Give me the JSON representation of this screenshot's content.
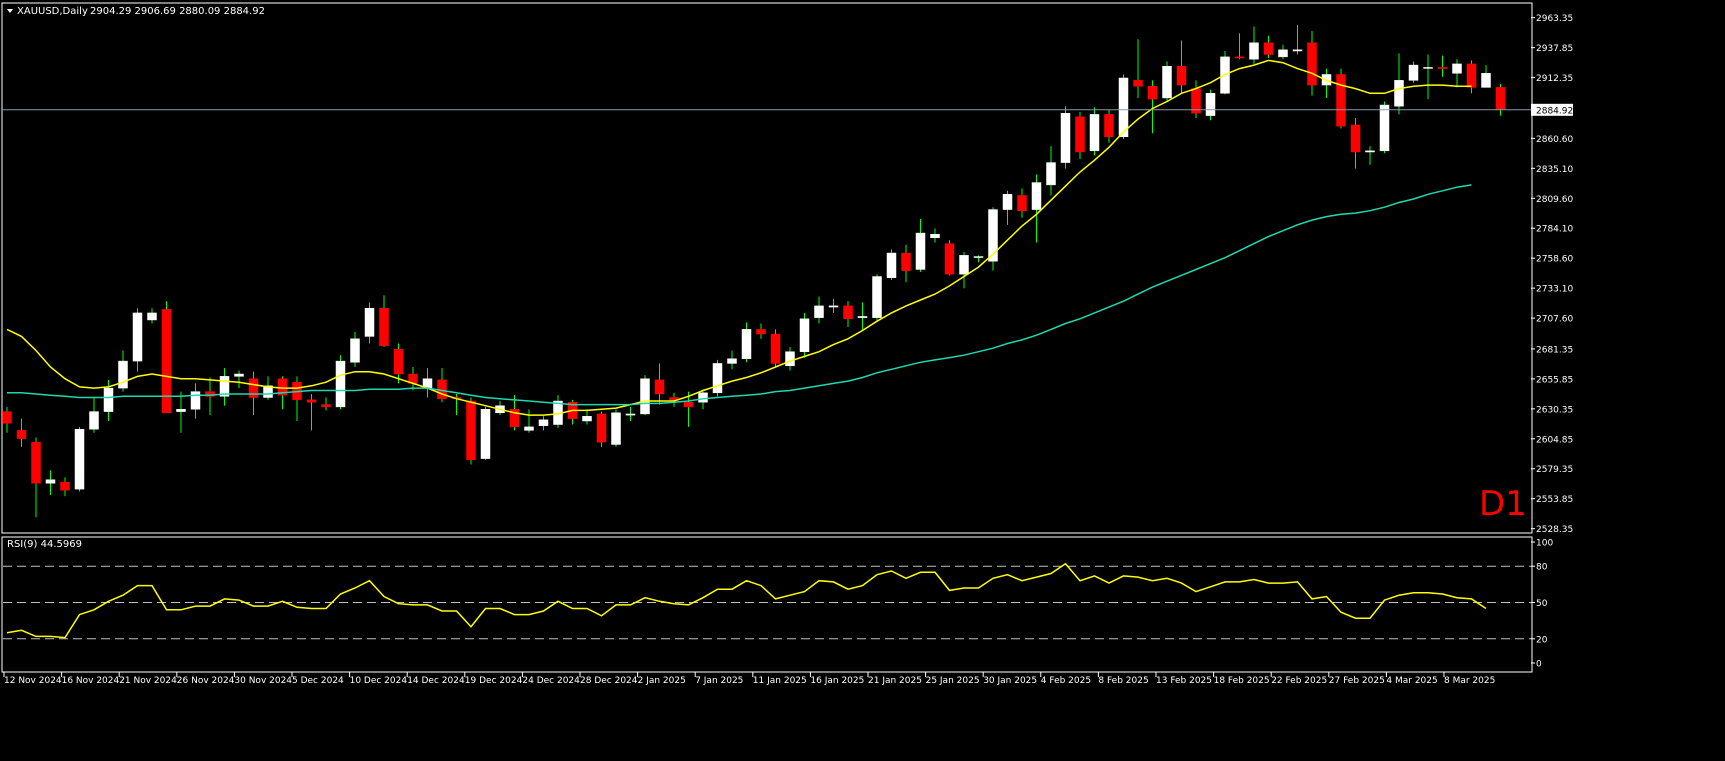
{
  "header": {
    "symbol": "XAUUSD,Daily",
    "ohlc": "2904.29 2906.69 2880.09 2884.92"
  },
  "watermark": "D1",
  "rsi_panel": {
    "label": "RSI(9) 44.5969"
  },
  "colors": {
    "background": "#000000",
    "bull_candle": "#ffffff",
    "bear_candle": "#ff0000",
    "wick": "#00ff00",
    "ma_fast": "#ffff00",
    "ma_slow": "#20d8b0",
    "rsi_line": "#ffff00",
    "grid_dashed": "#c0c0c0",
    "axis_text": "#ffffff",
    "watermark": "#ff0000",
    "price_line": "#8899aa"
  },
  "chart_data": {
    "type": "candlestick",
    "current_price": 2884.92,
    "price_axis": {
      "ylim": [
        2525.5,
        2975.0
      ],
      "tick_labels": [
        "2963.35",
        "2937.85",
        "2912.35",
        "2884.92",
        "2860.60",
        "2835.10",
        "2809.60",
        "2784.10",
        "2758.60",
        "2733.10",
        "2707.60",
        "2681.35",
        "2655.85",
        "2630.35",
        "2604.85",
        "2579.35",
        "2553.85",
        "2528.35"
      ]
    },
    "x_labels": [
      "12 Nov 2024",
      "16 Nov 2024",
      "21 Nov 2024",
      "26 Nov 2024",
      "30 Nov 2024",
      "5 Dec 2024",
      "10 Dec 2024",
      "14 Dec 2024",
      "19 Dec 2024",
      "24 Dec 2024",
      "28 Dec 2024",
      "2 Jan 2025",
      "7 Jan 2025",
      "11 Jan 2025",
      "16 Jan 2025",
      "21 Jan 2025",
      "25 Jan 2025",
      "30 Jan 2025",
      "4 Feb 2025",
      "8 Feb 2025",
      "13 Feb 2025",
      "18 Feb 2025",
      "22 Feb 2025",
      "27 Feb 2025",
      "4 Mar 2025",
      "8 Mar 2025"
    ],
    "candles": [
      [
        2628,
        2618,
        2632,
        2610
      ],
      [
        2612,
        2605,
        2622,
        2598
      ],
      [
        2602,
        2567,
        2606,
        2538
      ],
      [
        2567,
        2570,
        2578,
        2557
      ],
      [
        2568,
        2561,
        2572,
        2556
      ],
      [
        2562,
        2613,
        2615,
        2560
      ],
      [
        2613,
        2628,
        2640,
        2610
      ],
      [
        2628,
        2648,
        2655,
        2620
      ],
      [
        2648,
        2671,
        2680,
        2645
      ],
      [
        2671,
        2712,
        2716,
        2662
      ],
      [
        2706,
        2712,
        2716,
        2703
      ],
      [
        2715,
        2627,
        2722,
        2627
      ],
      [
        2628,
        2630,
        2645,
        2610
      ],
      [
        2630,
        2645,
        2652,
        2622
      ],
      [
        2645,
        2641,
        2657,
        2625
      ],
      [
        2641,
        2658,
        2665,
        2633
      ],
      [
        2658,
        2660,
        2663,
        2648
      ],
      [
        2656,
        2640,
        2662,
        2625
      ],
      [
        2640,
        2650,
        2658,
        2638
      ],
      [
        2656,
        2642,
        2658,
        2630
      ],
      [
        2653,
        2638,
        2658,
        2620
      ],
      [
        2638,
        2636,
        2643,
        2612
      ],
      [
        2634,
        2632,
        2640,
        2629
      ],
      [
        2632,
        2671,
        2676,
        2630
      ],
      [
        2670,
        2690,
        2696,
        2666
      ],
      [
        2692,
        2716,
        2721,
        2686
      ],
      [
        2716,
        2684,
        2727,
        2683
      ],
      [
        2681,
        2660,
        2686,
        2652
      ],
      [
        2660,
        2652,
        2666,
        2646
      ],
      [
        2648,
        2656,
        2665,
        2640
      ],
      [
        2655,
        2639,
        2665,
        2636
      ],
      [
        2640,
        2639,
        2643,
        2625
      ],
      [
        2637,
        2587,
        2640,
        2583
      ],
      [
        2588,
        2630,
        2632,
        2587
      ],
      [
        2627,
        2633,
        2637,
        2625
      ],
      [
        2630,
        2615,
        2642,
        2612
      ],
      [
        2612,
        2615,
        2630,
        2610
      ],
      [
        2616,
        2621,
        2624,
        2612
      ],
      [
        2617,
        2637,
        2642,
        2614
      ],
      [
        2636,
        2622,
        2638,
        2617
      ],
      [
        2620,
        2624,
        2630,
        2617
      ],
      [
        2626,
        2602,
        2628,
        2598
      ],
      [
        2600,
        2627,
        2630,
        2598
      ],
      [
        2625,
        2626,
        2632,
        2620
      ],
      [
        2626,
        2656,
        2659,
        2625
      ],
      [
        2655,
        2643,
        2669,
        2634
      ],
      [
        2640,
        2638,
        2644,
        2632
      ],
      [
        2636,
        2632,
        2645,
        2615
      ],
      [
        2636,
        2644,
        2647,
        2630
      ],
      [
        2644,
        2669,
        2672,
        2641
      ],
      [
        2669,
        2673,
        2680,
        2664
      ],
      [
        2673,
        2698,
        2704,
        2670
      ],
      [
        2698,
        2694,
        2703,
        2690
      ],
      [
        2694,
        2669,
        2698,
        2666
      ],
      [
        2667,
        2679,
        2683,
        2663
      ],
      [
        2679,
        2707,
        2712,
        2674
      ],
      [
        2708,
        2718,
        2726,
        2703
      ],
      [
        2717,
        2718,
        2724,
        2712
      ],
      [
        2718,
        2707,
        2722,
        2700
      ],
      [
        2708,
        2709,
        2721,
        2697
      ],
      [
        2708,
        2743,
        2745,
        2705
      ],
      [
        2742,
        2763,
        2766,
        2740
      ],
      [
        2763,
        2748,
        2770,
        2738
      ],
      [
        2749,
        2780,
        2792,
        2747
      ],
      [
        2776,
        2779,
        2784,
        2772
      ],
      [
        2771,
        2745,
        2774,
        2744
      ],
      [
        2745,
        2761,
        2764,
        2733
      ],
      [
        2760,
        2760,
        2761,
        2755
      ],
      [
        2756,
        2800,
        2802,
        2748
      ],
      [
        2800,
        2813,
        2816,
        2787
      ],
      [
        2812,
        2799,
        2818,
        2793
      ],
      [
        2800,
        2823,
        2830,
        2772
      ],
      [
        2821,
        2840,
        2854,
        2812
      ],
      [
        2840,
        2882,
        2888,
        2835
      ],
      [
        2879,
        2849,
        2883,
        2843
      ],
      [
        2850,
        2881,
        2887,
        2846
      ],
      [
        2881,
        2862,
        2885,
        2857
      ],
      [
        2862,
        2912,
        2915,
        2860
      ],
      [
        2910,
        2905,
        2945,
        2895
      ],
      [
        2905,
        2894,
        2910,
        2865
      ],
      [
        2895,
        2922,
        2926,
        2892
      ],
      [
        2922,
        2906,
        2944,
        2899
      ],
      [
        2903,
        2882,
        2910,
        2878
      ],
      [
        2880,
        2899,
        2902,
        2876
      ],
      [
        2899,
        2930,
        2935,
        2898
      ],
      [
        2930,
        2929,
        2950,
        2928
      ],
      [
        2928,
        2942,
        2956,
        2924
      ],
      [
        2942,
        2932,
        2948,
        2929
      ],
      [
        2930,
        2936,
        2940,
        2928
      ],
      [
        2935,
        2936,
        2957,
        2932
      ],
      [
        2942,
        2906,
        2952,
        2897
      ],
      [
        2906,
        2915,
        2920,
        2895
      ],
      [
        2915,
        2871,
        2920,
        2869
      ],
      [
        2872,
        2849,
        2878,
        2835
      ],
      [
        2849,
        2850,
        2854,
        2838
      ],
      [
        2850,
        2889,
        2892,
        2848
      ],
      [
        2888,
        2910,
        2933,
        2881
      ],
      [
        2910,
        2923,
        2926,
        2908
      ],
      [
        2921,
        2921,
        2932,
        2894
      ],
      [
        2921,
        2920,
        2931,
        2913
      ],
      [
        2916,
        2924,
        2928,
        2904
      ],
      [
        2924,
        2904,
        2927,
        2899
      ],
      [
        2904,
        2916,
        2923,
        2904
      ],
      [
        2904,
        2885,
        2907,
        2880
      ]
    ],
    "moving_averages": [
      {
        "values": [
          2698,
          2692,
          2680,
          2666,
          2656,
          2649,
          2648,
          2649,
          2653,
          2658,
          2660,
          2658,
          2656,
          2656,
          2655,
          2654,
          2653,
          2651,
          2649,
          2648,
          2648,
          2650,
          2653,
          2659,
          2662,
          2662,
          2660,
          2656,
          2652,
          2648,
          2643,
          2639,
          2636,
          2633,
          2630,
          2627,
          2625,
          2625,
          2626,
          2629,
          2629,
          2630,
          2631,
          2634,
          2637,
          2637,
          2637,
          2641,
          2646,
          2650,
          2654,
          2657,
          2661,
          2666,
          2671,
          2675,
          2679,
          2685,
          2690,
          2697,
          2705,
          2712,
          2718,
          2723,
          2728,
          2735,
          2743,
          2751,
          2762,
          2774,
          2786,
          2796,
          2808,
          2820,
          2832,
          2842,
          2853,
          2866,
          2877,
          2886,
          2892,
          2899,
          2903,
          2908,
          2915,
          2920,
          2923,
          2927,
          2925,
          2920,
          2916,
          2910,
          2906,
          2903,
          2899,
          2899,
          2903,
          2905,
          2906,
          2906,
          2905,
          2905
        ]
      },
      {
        "values": [
          2644,
          2644,
          2643,
          2642,
          2641,
          2640,
          2640,
          2640,
          2641,
          2641,
          2641,
          2641,
          2641,
          2642,
          2642,
          2643,
          2643,
          2643,
          2643,
          2644,
          2645,
          2646,
          2646,
          2646,
          2646,
          2647,
          2647,
          2647,
          2648,
          2648,
          2646,
          2644,
          2642,
          2640,
          2639,
          2638,
          2637,
          2636,
          2635,
          2634,
          2634,
          2634,
          2634,
          2634,
          2635,
          2635,
          2636,
          2637,
          2639,
          2640,
          2641,
          2642,
          2643,
          2645,
          2646,
          2648,
          2650,
          2652,
          2654,
          2657,
          2661,
          2664,
          2667,
          2670,
          2672,
          2674,
          2676,
          2679,
          2682,
          2686,
          2689,
          2693,
          2698,
          2703,
          2707,
          2712,
          2717,
          2722,
          2728,
          2734,
          2739,
          2744,
          2749,
          2754,
          2759,
          2765,
          2771,
          2777,
          2782,
          2787,
          2791,
          2794,
          2796,
          2797,
          2799,
          2802,
          2806,
          2809,
          2813,
          2816,
          2819,
          2821
        ]
      }
    ],
    "rsi": {
      "levels": [
        80,
        50,
        20
      ],
      "ylim": [
        0,
        100
      ],
      "tick_labels": [
        "100",
        "80",
        "50",
        "20",
        "0"
      ],
      "values": [
        25,
        27,
        22,
        22,
        21,
        40,
        44,
        51,
        56,
        64,
        64,
        44,
        44,
        47,
        47,
        53,
        52,
        47,
        47,
        51,
        46,
        45,
        45,
        57,
        62,
        68,
        55,
        49,
        48,
        48,
        43,
        43,
        30,
        45,
        45,
        40,
        40,
        43,
        51,
        45,
        45,
        39,
        48,
        48,
        54,
        51,
        49,
        48,
        54,
        61,
        61,
        68,
        64,
        53,
        56,
        59,
        68,
        67,
        61,
        64,
        73,
        76,
        70,
        75,
        75,
        60,
        62,
        62,
        70,
        73,
        68,
        71,
        74,
        82,
        68,
        72,
        66,
        72,
        71,
        68,
        70,
        66,
        59,
        63,
        67,
        67,
        69,
        66,
        66,
        67,
        53,
        55,
        42,
        37,
        37,
        52,
        56,
        58,
        58,
        57,
        54,
        53,
        45
      ]
    }
  }
}
